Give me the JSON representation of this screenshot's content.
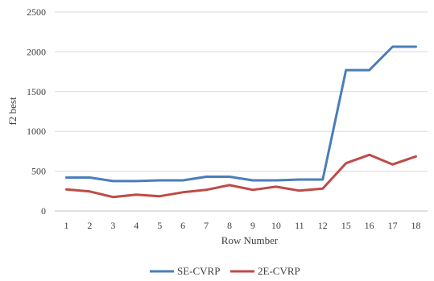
{
  "chart_data": {
    "type": "line",
    "categories": [
      "1",
      "2",
      "3",
      "4",
      "5",
      "6",
      "7",
      "8",
      "9",
      "10",
      "11",
      "12",
      "15",
      "16",
      "17",
      "18"
    ],
    "series": [
      {
        "name": "SE-CVRP",
        "color": "#4a7ebb",
        "values": [
          420,
          420,
          375,
          375,
          385,
          385,
          430,
          430,
          385,
          385,
          395,
          395,
          1770,
          1770,
          2065,
          2065
        ]
      },
      {
        "name": "2E-CVRP",
        "color": "#be4b48",
        "values": [
          270,
          245,
          175,
          205,
          185,
          235,
          265,
          325,
          265,
          305,
          255,
          280,
          600,
          705,
          585,
          685
        ]
      }
    ],
    "title": "",
    "xlabel": "Row Number",
    "ylabel": "f2 best",
    "ylim": [
      0,
      2500
    ],
    "yticks": [
      "0",
      "500",
      "1000",
      "1500",
      "2000",
      "2500"
    ],
    "grid": "horizontal",
    "legend_position": "bottom"
  }
}
